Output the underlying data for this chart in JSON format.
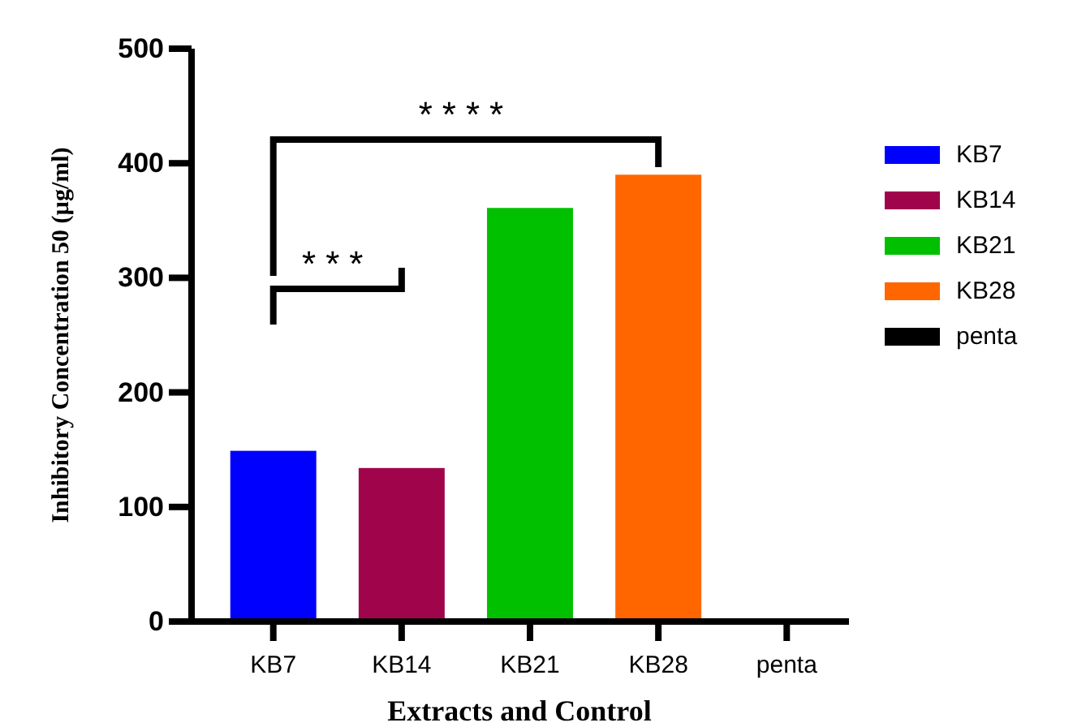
{
  "chart_data": {
    "type": "bar",
    "xlabel": "Extracts and Control",
    "ylabel": "Inhibitory Concentration 50 (µg/ml)",
    "categories": [
      "KB7",
      "KB14",
      "KB21",
      "KB28",
      "penta"
    ],
    "series": [
      {
        "name": "KB7",
        "color": "#0000ff",
        "values": [
          149,
          null,
          null,
          null,
          null
        ]
      },
      {
        "name": "KB14",
        "color": "#a0054b",
        "values": [
          null,
          134,
          null,
          null,
          null
        ]
      },
      {
        "name": "KB21",
        "color": "#00c000",
        "values": [
          null,
          null,
          361,
          null,
          null
        ]
      },
      {
        "name": "KB28",
        "color": "#ff6600",
        "values": [
          null,
          null,
          null,
          390,
          null
        ]
      },
      {
        "name": "penta",
        "color": "#000000",
        "values": [
          null,
          null,
          null,
          null,
          0
        ]
      }
    ],
    "ylim": [
      0,
      500
    ],
    "yticks": [
      0,
      100,
      200,
      300,
      400,
      500
    ],
    "legend": "right",
    "annotations": [
      "***",
      "****"
    ]
  }
}
